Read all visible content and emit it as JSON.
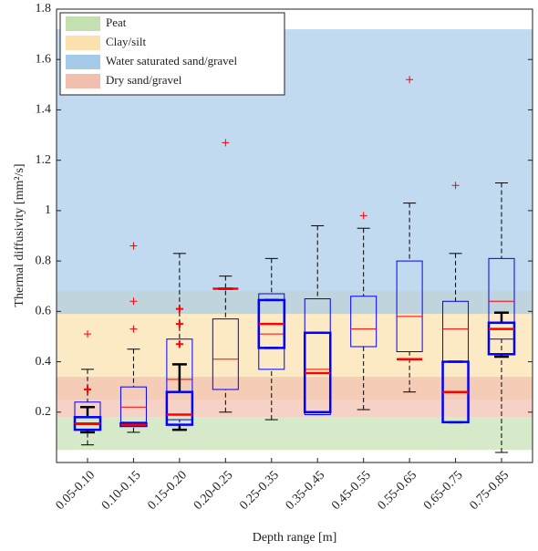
{
  "chart_data": {
    "type": "box",
    "x_label": "Depth range [m]",
    "y_label": "Thermal diffusivity [mm²/s]",
    "categories": [
      "0.05-0.10",
      "0.10-0.15",
      "0.15-0.20",
      "0.20-0.25",
      "0.25-0.35",
      "0.35-0.45",
      "0.45-0.55",
      "0.55-0.65",
      "0.65-0.75",
      "0.75-0.85"
    ],
    "ylim": [
      0,
      1.8
    ],
    "yticks": [
      0.2,
      0.4,
      0.6,
      0.8,
      1,
      1.2,
      1.4,
      1.6,
      1.8
    ],
    "legend": "upper left",
    "bands": [
      {
        "name": "Peat",
        "color": "#c5e0b0",
        "range": [
          0.05,
          0.18
        ]
      },
      {
        "name": "Clay/silt",
        "color": "#fbe1ad",
        "range": [
          0.25,
          0.68
        ]
      },
      {
        "name": "Water saturated sand/gravel",
        "color": "#a6cbe8",
        "range": [
          0.59,
          1.72
        ]
      },
      {
        "name": "Dry sand/gravel",
        "color": "#f2bfae",
        "range": [
          0.18,
          0.34
        ]
      }
    ],
    "series": [
      {
        "color": "#0000ff",
        "median_color": "#ff0000",
        "whisker_color": "#000000",
        "outlier_color": "#ff0000",
        "line_width": 1,
        "min": [
          0.07,
          0.12,
          0.13,
          0.2,
          0.17,
          0.19,
          0.21,
          0.28,
          0.16,
          0.04
        ],
        "q1": [
          0.13,
          0.16,
          0.17,
          0.29,
          0.37,
          0.19,
          0.46,
          0.44,
          0.16,
          0.49
        ],
        "median": [
          0.15,
          0.22,
          0.33,
          0.41,
          0.51,
          0.37,
          0.53,
          0.58,
          0.53,
          0.64
        ],
        "q3": [
          0.24,
          0.3,
          0.49,
          0.57,
          0.67,
          0.65,
          0.66,
          0.8,
          0.64,
          0.81
        ],
        "max": [
          0.37,
          0.45,
          0.83,
          0.74,
          0.81,
          0.94,
          0.93,
          1.03,
          0.83,
          1.11
        ],
        "outliers": [
          [
            0.51
          ],
          [
            0.53,
            0.64,
            0.86
          ],
          [],
          [
            1.27
          ],
          [],
          [],
          [
            0.98
          ],
          [
            1.52
          ],
          [
            1.1
          ],
          []
        ]
      },
      {
        "color": "#0000ff",
        "median_color": "#ff0000",
        "whisker_color": "#000000",
        "outlier_color": "#ff0000",
        "line_width": 2.5,
        "min": [
          0.12,
          0.15,
          0.13,
          0.69,
          0.455,
          0.2,
          null,
          0.41,
          0.16,
          0.42
        ],
        "q1": [
          0.13,
          0.145,
          0.15,
          0.69,
          0.455,
          0.2,
          null,
          0.41,
          0.16,
          0.43
        ],
        "median": [
          0.155,
          0.15,
          0.19,
          0.69,
          0.55,
          0.355,
          null,
          0.41,
          0.28,
          0.53
        ],
        "q3": [
          0.18,
          0.155,
          0.28,
          0.69,
          0.645,
          0.515,
          null,
          0.41,
          0.4,
          0.555
        ],
        "max": [
          0.22,
          0.155,
          0.39,
          0.69,
          0.645,
          0.515,
          null,
          0.41,
          0.4,
          0.595
        ],
        "outliers": [
          [
            0.29
          ],
          [],
          [
            0.47,
            0.55,
            0.61
          ],
          [],
          [],
          [],
          [],
          [],
          [],
          []
        ]
      }
    ]
  }
}
